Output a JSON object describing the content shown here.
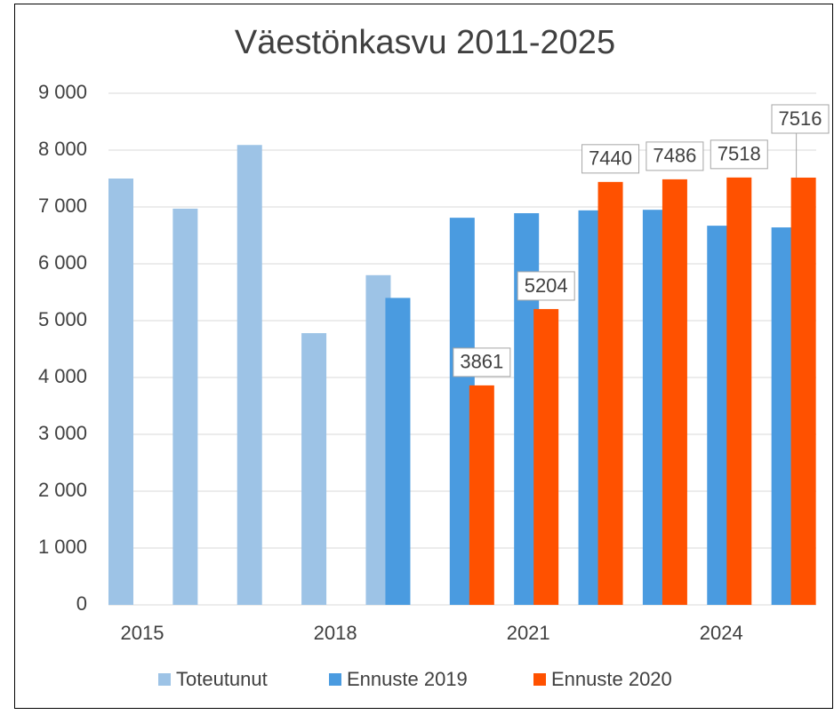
{
  "chart_data": {
    "type": "bar",
    "title": "Väestönkasvu 2011-2025",
    "categories": [
      "2015",
      null,
      null,
      "2018",
      null,
      null,
      "2021",
      null,
      null,
      "2024",
      null
    ],
    "series": [
      {
        "name": "Toteutunut",
        "color": "#9dc3e6",
        "values": [
          7500,
          6970,
          8090,
          4780,
          5800,
          null,
          null,
          null,
          null,
          null,
          null
        ]
      },
      {
        "name": "Ennuste 2019",
        "color": "#4a9be0",
        "values": [
          null,
          null,
          null,
          null,
          5400,
          6810,
          6890,
          6940,
          6950,
          6670,
          6640
        ]
      },
      {
        "name": "Ennuste 2020",
        "color": "#ff5100",
        "values": [
          null,
          null,
          null,
          null,
          null,
          3861,
          5204,
          7440,
          7486,
          7518,
          7516
        ],
        "data_labels": true
      }
    ],
    "ylim": [
      0,
      9000
    ],
    "yticks": [
      0,
      {
        "value": 1000,
        "label": "1 000"
      },
      {
        "value": 2000,
        "label": "2 000"
      },
      {
        "value": 3000,
        "label": "3 000"
      },
      {
        "value": 4000,
        "label": "4 000"
      },
      {
        "value": 5000,
        "label": "5 000"
      },
      {
        "value": 6000,
        "label": "6 000"
      },
      {
        "value": 7000,
        "label": "7 000"
      },
      {
        "value": 8000,
        "label": "8 000"
      },
      {
        "value": 9000,
        "label": "9 000"
      }
    ],
    "grid": true,
    "legend": "bottom"
  }
}
